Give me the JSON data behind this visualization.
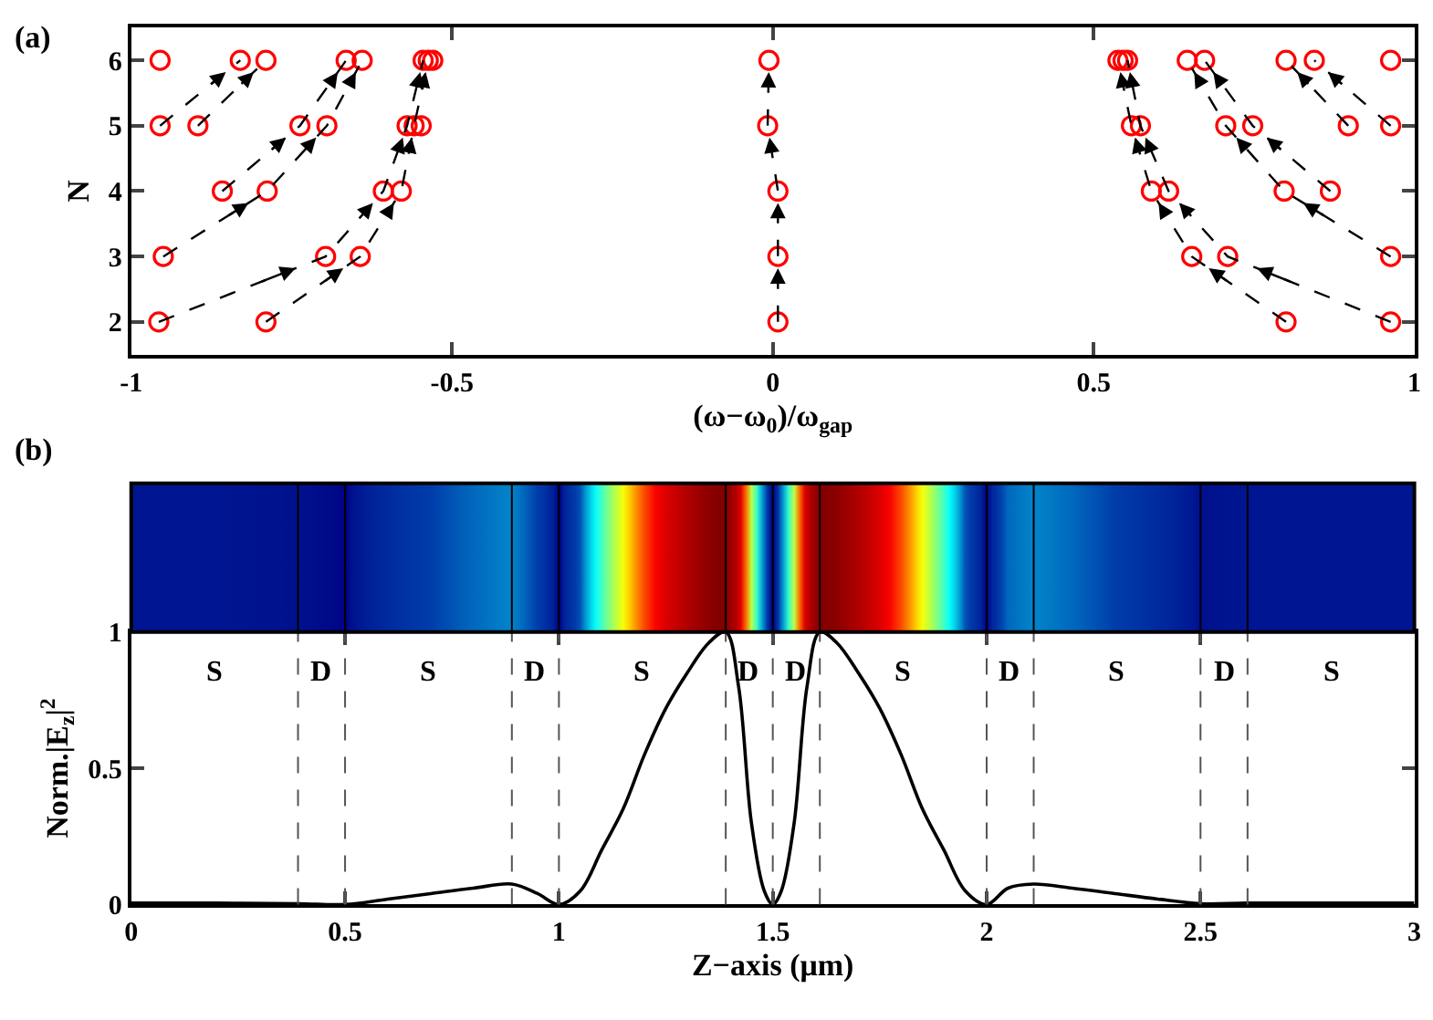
{
  "chart_data": [
    {
      "type": "scatter",
      "xlabel": "(ω−ω$_{0}$)/ω$_{gap}$",
      "ylabel": "N",
      "annotations": [
        "(a)"
      ],
      "xlim": [
        -1,
        1
      ],
      "xticks": [
        -1,
        -0.5,
        0,
        0.5,
        1
      ],
      "ylim": [
        1.5,
        6.5
      ],
      "yticks": [
        2,
        3,
        4,
        5,
        6
      ],
      "series": [
        {
          "type": "scatter",
          "marker": "circle",
          "color": "#ff0000",
          "x": [
            -0.955,
            -0.83,
            -0.79,
            -0.665,
            -0.64,
            -0.545,
            -0.537,
            -0.53,
            -0.006,
            0.538,
            0.546,
            0.553,
            0.646,
            0.673,
            0.8,
            0.844,
            0.963,
            -0.955,
            -0.896,
            -0.737,
            -0.695,
            -0.57,
            -0.559,
            -0.548,
            -0.008,
            0.559,
            0.573,
            0.706,
            0.748,
            0.897,
            0.963,
            -0.858,
            -0.788,
            -0.607,
            -0.579,
            0.008,
            0.59,
            0.617,
            0.797,
            0.869,
            -0.95,
            -0.697,
            -0.643,
            0.008,
            0.653,
            0.709,
            0.963,
            -0.957,
            -0.79,
            0.008,
            0.8,
            0.963
          ],
          "values": [
            6,
            6,
            6,
            6,
            6,
            6,
            6,
            6,
            6,
            6,
            6,
            6,
            6,
            6,
            6,
            6,
            6,
            5,
            5,
            5,
            5,
            5,
            5,
            5,
            5,
            5,
            5,
            5,
            5,
            5,
            5,
            4,
            4,
            4,
            4,
            4,
            4,
            4,
            4,
            4,
            3,
            3,
            3,
            3,
            3,
            3,
            3,
            2,
            2,
            2,
            2,
            2
          ]
        },
        {
          "type": "line",
          "color": "#000000",
          "line_style": "dashed",
          "x": [
            -0.957,
            -0.697,
            -0.607,
            -0.57,
            -0.545
          ],
          "values": [
            2,
            3,
            4,
            5,
            6
          ]
        },
        {
          "type": "line",
          "color": "#000000",
          "line_style": "dashed",
          "x": [
            -0.79,
            -0.643,
            -0.579,
            -0.559,
            -0.537
          ],
          "values": [
            2,
            3,
            4,
            5,
            6
          ]
        },
        {
          "type": "line",
          "color": "#000000",
          "line_style": "dashed",
          "x": [
            -0.95,
            -0.788,
            -0.695,
            -0.64
          ],
          "values": [
            3,
            4,
            5,
            6
          ]
        },
        {
          "type": "line",
          "color": "#000000",
          "line_style": "dashed",
          "x": [
            -0.858,
            -0.737,
            -0.665
          ],
          "values": [
            4,
            5,
            6
          ]
        },
        {
          "type": "line",
          "color": "#000000",
          "line_style": "dashed",
          "x": [
            -0.955,
            -0.83
          ],
          "values": [
            5,
            6
          ]
        },
        {
          "type": "line",
          "color": "#000000",
          "line_style": "dashed",
          "x": [
            -0.896,
            -0.79
          ],
          "values": [
            5,
            6
          ]
        },
        {
          "type": "line",
          "color": "#000000",
          "line_style": "dashed",
          "x": [
            0.008,
            0.008,
            0.008,
            -0.008,
            -0.006
          ],
          "values": [
            2,
            3,
            4,
            5,
            6
          ]
        },
        {
          "type": "line",
          "color": "#000000",
          "line_style": "dashed",
          "x": [
            0.963,
            0.709,
            0.617,
            0.573,
            0.553
          ],
          "values": [
            2,
            3,
            4,
            5,
            6
          ]
        },
        {
          "type": "line",
          "color": "#000000",
          "line_style": "dashed",
          "x": [
            0.8,
            0.653,
            0.59,
            0.559,
            0.538
          ],
          "values": [
            2,
            3,
            4,
            5,
            6
          ]
        },
        {
          "type": "line",
          "color": "#000000",
          "line_style": "dashed",
          "x": [
            0.963,
            0.797,
            0.706,
            0.646
          ],
          "values": [
            3,
            4,
            5,
            6
          ]
        },
        {
          "type": "line",
          "color": "#000000",
          "line_style": "dashed",
          "x": [
            0.869,
            0.748,
            0.673
          ],
          "values": [
            4,
            5,
            6
          ]
        },
        {
          "type": "line",
          "color": "#000000",
          "line_style": "dashed",
          "x": [
            0.963,
            0.844
          ],
          "values": [
            5,
            6
          ]
        },
        {
          "type": "line",
          "color": "#000000",
          "line_style": "dashed",
          "x": [
            0.897,
            0.8
          ],
          "values": [
            5,
            6
          ]
        }
      ]
    },
    {
      "type": "line",
      "xlabel": "Z−axis (μm)",
      "ylabel": "Norm.|E$_{z}$|$^{2}$",
      "xlim": [
        0,
        3
      ],
      "xticks": [
        0,
        0.5,
        1,
        1.5,
        2,
        2.5,
        3
      ],
      "ylim": [
        0,
        1
      ],
      "yticks": [
        0,
        0.5,
        1
      ],
      "series": [
        {
          "color": "#000000",
          "line_style": "solid",
          "x": [
            0,
            0.2,
            0.39,
            0.5,
            0.6,
            0.7,
            0.8,
            0.89,
            0.95,
            1.0,
            1.05,
            1.1,
            1.15,
            1.2,
            1.25,
            1.3,
            1.35,
            1.39,
            1.42,
            1.45,
            1.48,
            1.5,
            1.52,
            1.55,
            1.58,
            1.61,
            1.65,
            1.7,
            1.75,
            1.8,
            1.85,
            1.9,
            1.95,
            2.0,
            2.05,
            2.11,
            2.2,
            2.3,
            2.4,
            2.5,
            2.61,
            2.8,
            3
          ],
          "values": [
            0.005,
            0.005,
            0.003,
            0,
            0.02,
            0.04,
            0.06,
            0.075,
            0.04,
            0,
            0.05,
            0.2,
            0.35,
            0.55,
            0.72,
            0.85,
            0.96,
            1.0,
            0.8,
            0.3,
            0.05,
            0,
            0.05,
            0.3,
            0.8,
            1.0,
            0.96,
            0.85,
            0.72,
            0.55,
            0.35,
            0.2,
            0.05,
            0,
            0.06,
            0.075,
            0.06,
            0.04,
            0.02,
            0.003,
            0.005,
            0.005,
            0.005
          ]
        }
      ],
      "ref_lines": [
        {
          "axis": "x",
          "value": 0.39,
          "line_style": "dashed"
        },
        {
          "axis": "x",
          "value": 0.5,
          "line_style": "dashed"
        },
        {
          "axis": "x",
          "value": 0.89,
          "line_style": "dashed"
        },
        {
          "axis": "x",
          "value": 1.0,
          "line_style": "dashed"
        },
        {
          "axis": "x",
          "value": 1.39,
          "line_style": "dashed"
        },
        {
          "axis": "x",
          "value": 1.5,
          "line_style": "dashed"
        },
        {
          "axis": "x",
          "value": 1.61,
          "line_style": "dashed"
        },
        {
          "axis": "x",
          "value": 2.0,
          "line_style": "dashed"
        },
        {
          "axis": "x",
          "value": 2.11,
          "line_style": "dashed"
        },
        {
          "axis": "x",
          "value": 2.5,
          "line_style": "dashed"
        },
        {
          "axis": "x",
          "value": 2.61,
          "line_style": "dashed"
        }
      ],
      "annotations": [
        "(b)",
        "S",
        "D",
        "S",
        "D",
        "S",
        "D",
        "D",
        "S",
        "D",
        "S",
        "D",
        "S"
      ]
    }
  ]
}
